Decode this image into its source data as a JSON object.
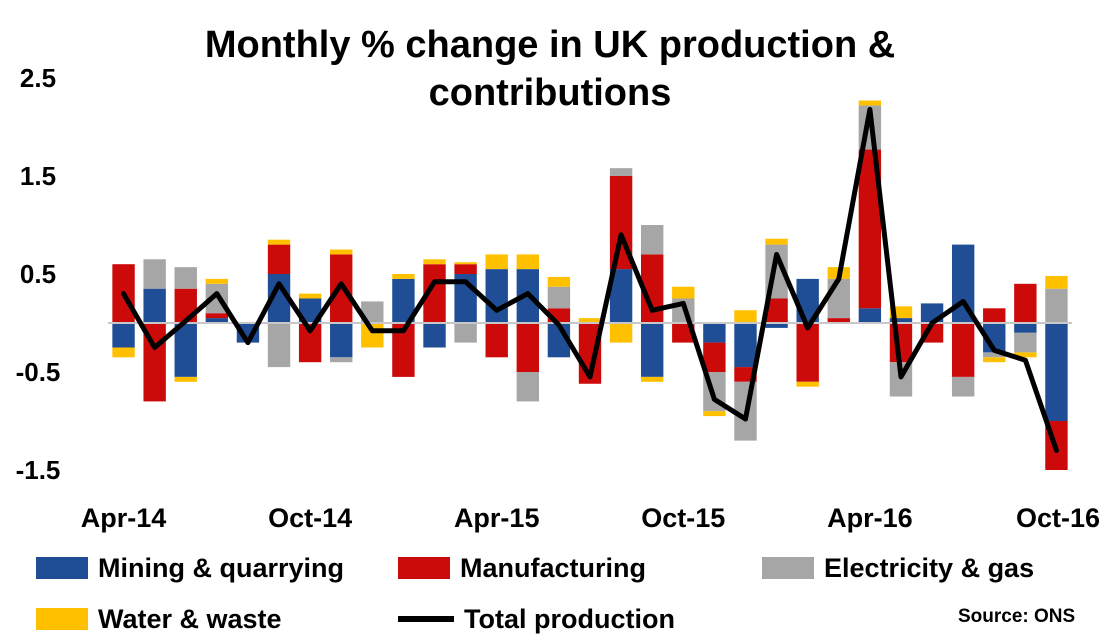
{
  "chart_data": {
    "type": "bar",
    "title": "Monthly % change in UK production & contributions",
    "title_lines": [
      "Monthly % change in UK production &",
      "contributions"
    ],
    "xlabel": "",
    "ylabel": "",
    "ylim": [
      -1.5,
      2.5
    ],
    "yticks": [
      2.5,
      1.5,
      0.5,
      -0.5,
      -1.5
    ],
    "ytick_labels": [
      "2.5",
      "1.5",
      "0.5",
      "-0.5",
      "-1.5"
    ],
    "stacked": true,
    "categories": [
      "Apr-14",
      "May-14",
      "Jun-14",
      "Jul-14",
      "Aug-14",
      "Sep-14",
      "Oct-14",
      "Nov-14",
      "Dec-14",
      "Jan-15",
      "Feb-15",
      "Mar-15",
      "Apr-15",
      "May-15",
      "Jun-15",
      "Jul-15",
      "Aug-15",
      "Sep-15",
      "Oct-15",
      "Nov-15",
      "Dec-15",
      "Jan-16",
      "Feb-16",
      "Mar-16",
      "Apr-16",
      "May-16",
      "Jun-16",
      "Jul-16",
      "Aug-16",
      "Sep-16",
      "Oct-16"
    ],
    "xtick_labels": [
      {
        "index": 0,
        "label": "Apr-14"
      },
      {
        "index": 6,
        "label": "Oct-14"
      },
      {
        "index": 12,
        "label": "Apr-15"
      },
      {
        "index": 18,
        "label": "Oct-15"
      },
      {
        "index": 24,
        "label": "Apr-16"
      },
      {
        "index": 30,
        "label": "Oct-16"
      }
    ],
    "series": [
      {
        "name": "Mining & quarrying",
        "kind": "bar",
        "color": "#1F4E96",
        "values": [
          -0.25,
          0.35,
          -0.55,
          0.05,
          -0.2,
          0.5,
          0.25,
          -0.35,
          0.0,
          0.45,
          -0.25,
          0.5,
          0.55,
          0.55,
          -0.35,
          0.0,
          0.55,
          -0.55,
          0.0,
          -0.2,
          -0.45,
          -0.05,
          0.45,
          0.0,
          0.15,
          0.05,
          0.2,
          0.8,
          -0.3,
          -0.1,
          -1.0
        ]
      },
      {
        "name": "Manufacturing",
        "kind": "bar",
        "color": "#CC0A0A",
        "values": [
          0.6,
          -0.8,
          0.35,
          0.05,
          0.0,
          0.3,
          -0.4,
          0.7,
          0.0,
          -0.55,
          0.6,
          0.1,
          -0.35,
          -0.5,
          0.15,
          -0.62,
          0.95,
          0.7,
          -0.2,
          -0.3,
          -0.15,
          0.25,
          -0.6,
          0.05,
          1.62,
          -0.4,
          -0.2,
          -0.55,
          0.15,
          0.4,
          -0.5
        ]
      },
      {
        "name": "Electricity & gas",
        "kind": "bar",
        "color": "#A6A6A6",
        "values": [
          0.0,
          0.3,
          0.22,
          0.3,
          0.0,
          -0.45,
          0.0,
          -0.05,
          0.22,
          0.0,
          0.0,
          -0.2,
          0.0,
          -0.3,
          0.22,
          0.0,
          0.08,
          0.3,
          0.25,
          -0.4,
          -0.6,
          0.55,
          0.0,
          0.4,
          0.45,
          -0.35,
          0.0,
          -0.2,
          -0.05,
          -0.2,
          0.35
        ]
      },
      {
        "name": "Water & waste",
        "kind": "bar",
        "color": "#FFC000",
        "values": [
          -0.1,
          0.0,
          -0.05,
          0.05,
          0.0,
          0.05,
          0.05,
          0.05,
          -0.25,
          0.05,
          0.05,
          0.02,
          0.15,
          0.15,
          0.1,
          0.05,
          -0.2,
          -0.05,
          0.12,
          -0.05,
          0.13,
          0.06,
          -0.05,
          0.12,
          0.05,
          0.12,
          0.0,
          0.0,
          -0.05,
          -0.05,
          0.13
        ]
      },
      {
        "name": "Total production",
        "kind": "line",
        "color": "#000000",
        "values": [
          0.3,
          -0.25,
          0.02,
          0.3,
          -0.2,
          0.4,
          -0.08,
          0.4,
          -0.08,
          -0.08,
          0.42,
          0.42,
          0.13,
          0.3,
          -0.02,
          -0.55,
          0.9,
          0.13,
          0.2,
          -0.78,
          -0.98,
          0.7,
          -0.05,
          0.45,
          2.18,
          -0.55,
          0.0,
          0.22,
          -0.28,
          -0.38,
          -1.3
        ]
      }
    ]
  },
  "legend": {
    "items": [
      {
        "label": "Mining & quarrying",
        "color": "#1F4E96"
      },
      {
        "label": "Manufacturing",
        "color": "#CC0A0A"
      },
      {
        "label": "Electricity & gas",
        "color": "#A6A6A6"
      },
      {
        "label": "Water & waste",
        "color": "#FFC000"
      },
      {
        "label": "Total production",
        "color": "#000000"
      }
    ]
  },
  "source": "Source: ONS"
}
